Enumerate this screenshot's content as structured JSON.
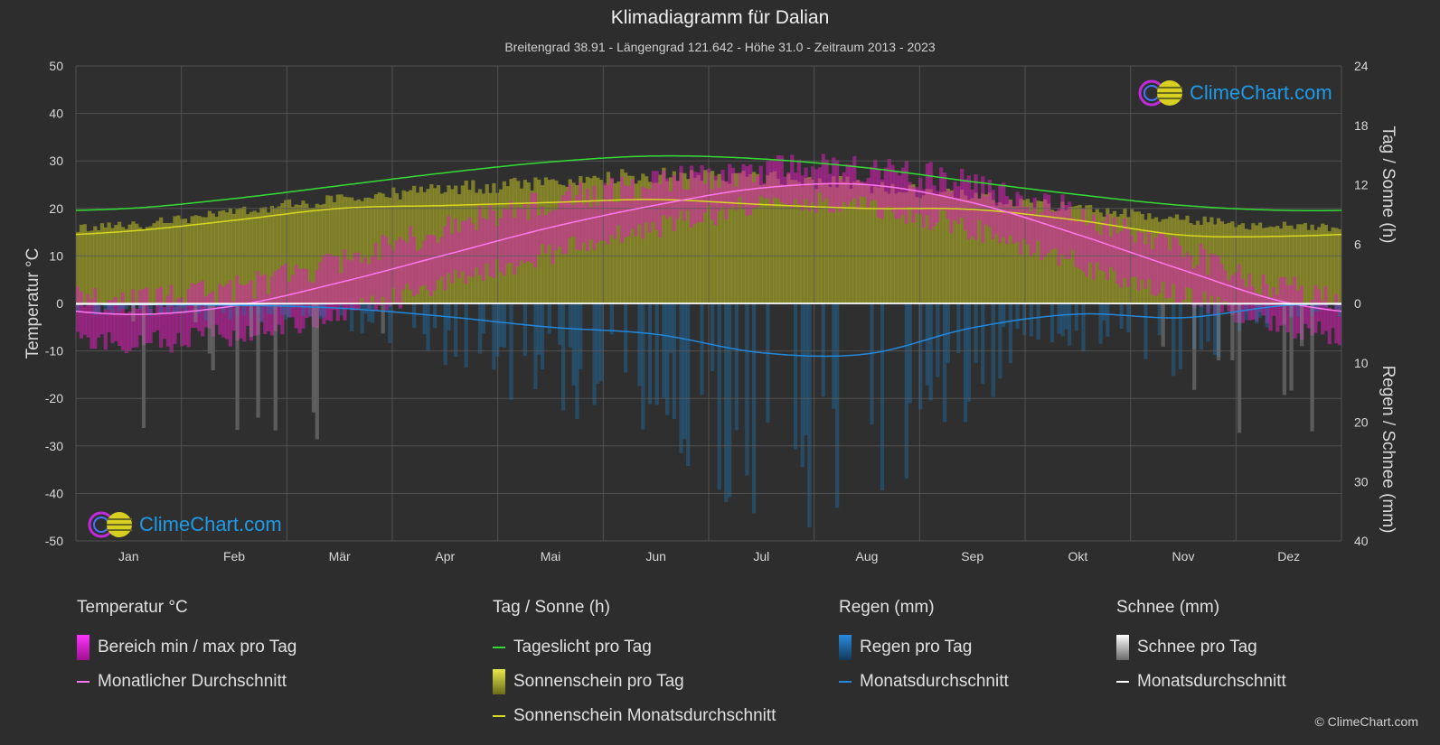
{
  "header": {
    "title": "Klimadiagramm für Dalian",
    "subtitle": "Breitengrad 38.91 - Längengrad 121.642 - Höhe 31.0 - Zeitraum 2013 - 2023"
  },
  "brand": {
    "text": "ClimeChart.com",
    "copyright": "© ClimeChart.com"
  },
  "colors": {
    "background": "#2d2d2d",
    "grid": "#5a5a5a",
    "daylight": "#33dd33",
    "sunshine_fill": "#9a9a2a",
    "sunshine_avg": "#d8d820",
    "temp_range": "#d81fb4",
    "temp_avg": "#ff77ee",
    "rain": "#1e6fa8",
    "rain_avg": "#2288dd",
    "snow": "#8a8a8a",
    "snow_avg": "#ffffff"
  },
  "legend": {
    "temperature": {
      "title": "Temperatur °C",
      "items": [
        "Bereich min / max pro Tag",
        "Monatlicher Durchschnitt"
      ]
    },
    "sun": {
      "title": "Tag / Sonne (h)",
      "items": [
        "Tageslicht pro Tag",
        "Sonnenschein pro Tag",
        "Sonnenschein Monatsdurchschnitt"
      ]
    },
    "rain": {
      "title": "Regen (mm)",
      "items": [
        "Regen pro Tag",
        "Monatsdurchschnitt"
      ]
    },
    "snow": {
      "title": "Schnee (mm)",
      "items": [
        "Schnee pro Tag",
        "Monatsdurchschnitt"
      ]
    }
  },
  "chart_data": {
    "type": "line",
    "categories": [
      "Jan",
      "Feb",
      "Mär",
      "Apr",
      "Mai",
      "Jun",
      "Jul",
      "Aug",
      "Sep",
      "Okt",
      "Nov",
      "Dez"
    ],
    "y_left": {
      "label": "Temperatur °C",
      "ticks": [
        50,
        40,
        30,
        20,
        10,
        0,
        -10,
        -20,
        -30,
        -40,
        -50
      ],
      "range": [
        -50,
        50
      ]
    },
    "y_right_top": {
      "label": "Tag / Sonne (h)",
      "ticks": [
        24,
        18,
        12,
        6,
        0
      ],
      "range": [
        0,
        24
      ]
    },
    "y_right_bottom": {
      "label": "Regen / Schnee (mm)",
      "ticks": [
        0,
        10,
        20,
        30,
        40
      ],
      "range": [
        0,
        40
      ]
    },
    "grid": true,
    "series": [
      {
        "name": "Tageslicht pro Tag",
        "unit": "h",
        "values": [
          9.6,
          10.6,
          11.9,
          13.2,
          14.3,
          14.9,
          14.6,
          13.7,
          12.3,
          11.0,
          9.9,
          9.4
        ]
      },
      {
        "name": "Sonnenschein Monatsdurchschnitt",
        "unit": "h",
        "values": [
          7.3,
          8.4,
          9.6,
          9.9,
          10.2,
          10.5,
          10.0,
          9.6,
          9.5,
          8.4,
          6.9,
          6.8
        ]
      },
      {
        "name": "Sonnenschein pro Tag",
        "unit": "h",
        "values": [
          8.2,
          9.6,
          11.0,
          12.0,
          12.8,
          13.5,
          13.2,
          12.4,
          11.2,
          10.0,
          8.8,
          8.1
        ]
      },
      {
        "name": "Monatlicher Durchschnitt",
        "unit": "°C",
        "values": [
          -2.3,
          -0.5,
          4.4,
          10.2,
          16.0,
          20.7,
          24.3,
          25.0,
          21.2,
          14.5,
          7.0,
          0.1
        ]
      },
      {
        "name": "Bereich max",
        "unit": "°C",
        "values": [
          0.5,
          3.0,
          9.0,
          15.5,
          21.5,
          25.5,
          28.0,
          28.5,
          25.0,
          19.0,
          11.0,
          3.0
        ]
      },
      {
        "name": "Bereich min",
        "unit": "°C",
        "values": [
          -7.0,
          -5.5,
          -1.0,
          5.0,
          11.5,
          17.0,
          21.5,
          21.5,
          16.5,
          9.5,
          2.5,
          -4.0
        ]
      },
      {
        "name": "Regen Monatsdurchschnitt",
        "unit": "mm",
        "values": [
          0.2,
          0.3,
          0.8,
          2.2,
          4.0,
          5.2,
          8.3,
          8.5,
          4.1,
          1.8,
          2.4,
          0.3
        ]
      },
      {
        "name": "Schnee Monatsdurchschnitt",
        "unit": "mm",
        "values": [
          0.15,
          0.1,
          0.05,
          0,
          0,
          0,
          0,
          0,
          0,
          0,
          0.05,
          0.1
        ]
      }
    ]
  }
}
